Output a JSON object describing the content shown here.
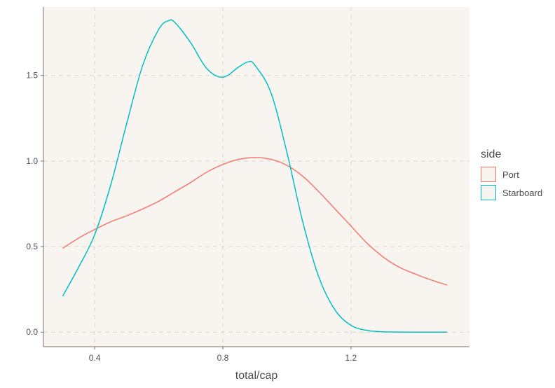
{
  "chart_data": {
    "type": "line",
    "xlabel": "total/cap",
    "ylabel": "",
    "xlim": [
      0.24,
      1.57
    ],
    "ylim": [
      -0.085,
      1.9
    ],
    "xticks": [
      {
        "value": 0.4,
        "label": "0.4"
      },
      {
        "value": 0.8,
        "label": "0.8"
      },
      {
        "value": 1.2,
        "label": "1.2"
      }
    ],
    "yticks": [
      {
        "value": 0.0,
        "label": "0.0"
      },
      {
        "value": 0.5,
        "label": "0.5"
      },
      {
        "value": 1.0,
        "label": "1.0"
      },
      {
        "value": 1.5,
        "label": "1.5"
      }
    ],
    "grid": true,
    "legend_position": "right",
    "legend_title": "side",
    "series": [
      {
        "name": "Port",
        "color": "#f8766d",
        "x": [
          0.3,
          0.35,
          0.4,
          0.45,
          0.5,
          0.55,
          0.6,
          0.65,
          0.7,
          0.75,
          0.8,
          0.85,
          0.9,
          0.95,
          1.0,
          1.05,
          1.1,
          1.15,
          1.2,
          1.25,
          1.3,
          1.35,
          1.4,
          1.45,
          1.5
        ],
        "y": [
          0.49,
          0.55,
          0.6,
          0.645,
          0.68,
          0.72,
          0.765,
          0.82,
          0.875,
          0.935,
          0.98,
          1.01,
          1.02,
          1.01,
          0.975,
          0.91,
          0.82,
          0.72,
          0.62,
          0.52,
          0.44,
          0.38,
          0.34,
          0.305,
          0.275
        ]
      },
      {
        "name": "Starboard",
        "color": "#00bfc4",
        "x": [
          0.3,
          0.35,
          0.4,
          0.45,
          0.5,
          0.55,
          0.6,
          0.63,
          0.65,
          0.7,
          0.75,
          0.8,
          0.85,
          0.88,
          0.9,
          0.95,
          1.0,
          1.05,
          1.1,
          1.15,
          1.2,
          1.25,
          1.3,
          1.4,
          1.5
        ],
        "y": [
          0.21,
          0.38,
          0.57,
          0.86,
          1.22,
          1.56,
          1.77,
          1.82,
          1.81,
          1.69,
          1.54,
          1.49,
          1.55,
          1.58,
          1.56,
          1.4,
          1.05,
          0.64,
          0.32,
          0.13,
          0.04,
          0.01,
          0.002,
          0.0,
          0.0
        ]
      }
    ]
  }
}
